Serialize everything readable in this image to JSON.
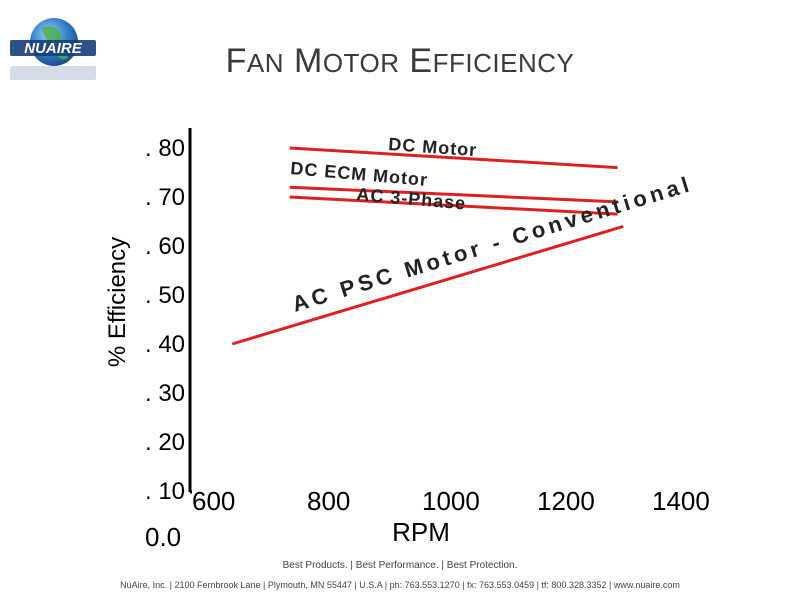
{
  "title": {
    "parts": [
      {
        "cap": "F",
        "rest": "AN"
      },
      {
        "cap": "M",
        "rest": "OTOR"
      },
      {
        "cap": "E",
        "rest": "FFICIENCY"
      }
    ]
  },
  "logo": {
    "text": "NUAIRE"
  },
  "chart_data": {
    "type": "line",
    "ylabel": "% Efficiency",
    "xlabel": "RPM",
    "x_ticks": [
      "600",
      "800",
      "1000",
      "1200",
      "1400"
    ],
    "y_ticks": [
      ". 80",
      ". 70",
      ". 60",
      ". 50",
      ". 40",
      ". 30",
      ". 20",
      ". 10"
    ],
    "origin_label": "0.0",
    "series": [
      {
        "name": "DC Motor",
        "x": [
          770,
          1340
        ],
        "y": [
          0.8,
          0.76
        ]
      },
      {
        "name": "DC ECM Motor",
        "x": [
          770,
          1340
        ],
        "y": [
          0.72,
          0.69
        ]
      },
      {
        "name": "AC 3-Phase",
        "x": [
          770,
          1340
        ],
        "y": [
          0.7,
          0.665
        ]
      },
      {
        "name": "AC PSC Motor - Conventional",
        "x": [
          670,
          1350
        ],
        "y": [
          0.4,
          0.64
        ]
      }
    ],
    "colors": {
      "series": "#e02020",
      "axis": "#000000"
    }
  },
  "footer": {
    "tagline": "Best Products.  |  Best Performance.  |  Best Protection.",
    "address": "NuAire, Inc.  |  2100 Fernbrook Lane  |  Plymouth, MN 55447  |  U.S.A  |  ph: 763.553.1270  |  fx: 763.553.0459  |  tf: 800.328.3352  |  www.nuaire.com"
  }
}
